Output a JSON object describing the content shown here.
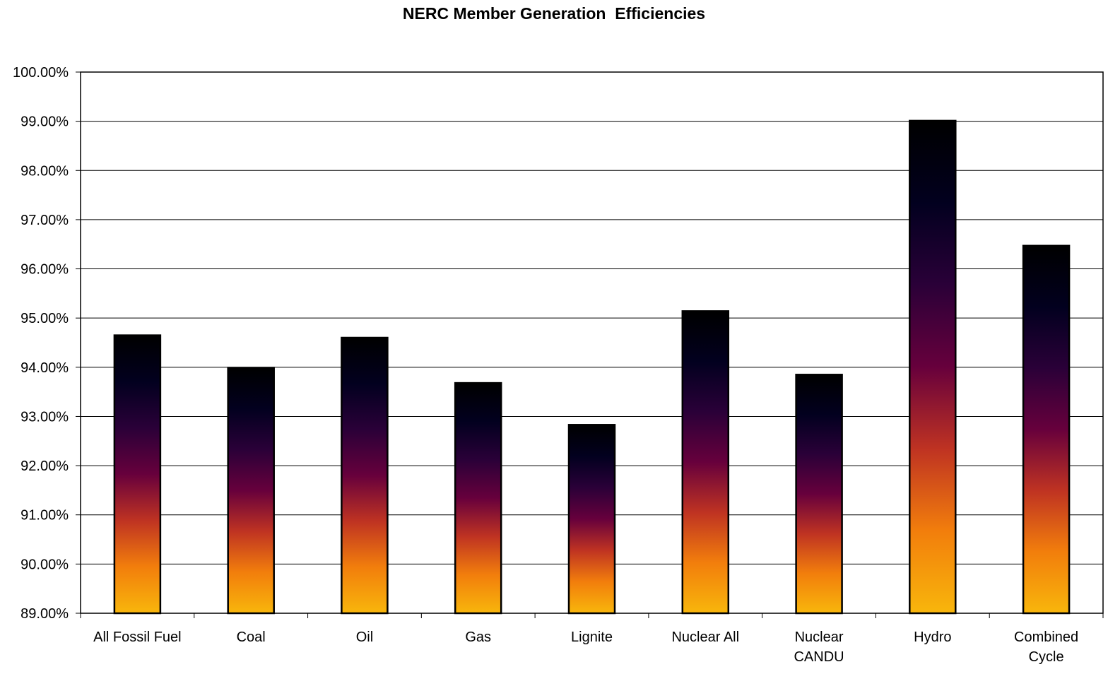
{
  "chart_data": {
    "type": "bar",
    "title": "NERC Member Generation  Efficiencies",
    "xlabel": "",
    "ylabel": "",
    "categories": [
      [
        "All Fossil Fuel"
      ],
      [
        "Coal"
      ],
      [
        "Oil"
      ],
      [
        "Gas"
      ],
      [
        "Lignite"
      ],
      [
        "Nuclear All"
      ],
      [
        "Nuclear",
        "CANDU"
      ],
      [
        "Hydro"
      ],
      [
        "Combined",
        "Cycle"
      ]
    ],
    "values": [
      94.65,
      93.99,
      94.6,
      93.68,
      92.83,
      95.14,
      93.85,
      99.01,
      96.47
    ],
    "ylim": [
      89,
      100
    ],
    "yticks": [
      "89.00%",
      "90.00%",
      "91.00%",
      "92.00%",
      "93.00%",
      "94.00%",
      "95.00%",
      "96.00%",
      "97.00%",
      "98.00%",
      "99.00%",
      "100.00%"
    ],
    "grid": true,
    "legend": "none",
    "bar_gradient": [
      "#F8B60C",
      "#F27E0C",
      "#BF3322",
      "#67003C",
      "#2A0038",
      "#02001F",
      "#000000"
    ]
  }
}
